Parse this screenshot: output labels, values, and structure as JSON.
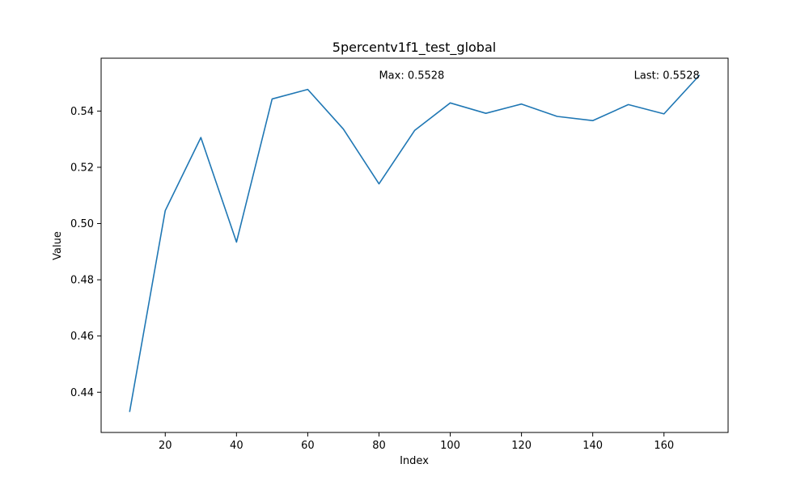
{
  "chart_data": {
    "type": "line",
    "title": "5percentv1f1_test_global",
    "xlabel": "Index",
    "ylabel": "Value",
    "x": [
      10,
      20,
      30,
      40,
      50,
      60,
      70,
      80,
      90,
      100,
      110,
      120,
      130,
      140,
      150,
      160,
      170
    ],
    "series": [
      {
        "values": [
          0.433,
          0.5046,
          0.5306,
          0.4934,
          0.5443,
          0.5477,
          0.5336,
          0.5141,
          0.5331,
          0.5429,
          0.5392,
          0.5425,
          0.5381,
          0.5366,
          0.5423,
          0.539,
          0.5528
        ],
        "color": "#1f77b4"
      }
    ],
    "xlim": [
      2,
      178
    ],
    "ylim": [
      0.4257,
      0.5588
    ],
    "xticks": [
      20,
      40,
      60,
      80,
      100,
      120,
      140,
      160
    ],
    "yticks": [
      0.44,
      0.46,
      0.48,
      0.5,
      0.52,
      0.54
    ],
    "ytick_labels": [
      "0.44",
      "0.46",
      "0.48",
      "0.50",
      "0.52",
      "0.54"
    ],
    "annotations": [
      {
        "text": "Max: 0.5528",
        "x": 80,
        "y": 0.5528,
        "anchor": "start"
      },
      {
        "text": "Last: 0.5528",
        "x": 170,
        "y": 0.5528,
        "anchor": "end"
      }
    ],
    "grid": false,
    "legend": "none"
  }
}
